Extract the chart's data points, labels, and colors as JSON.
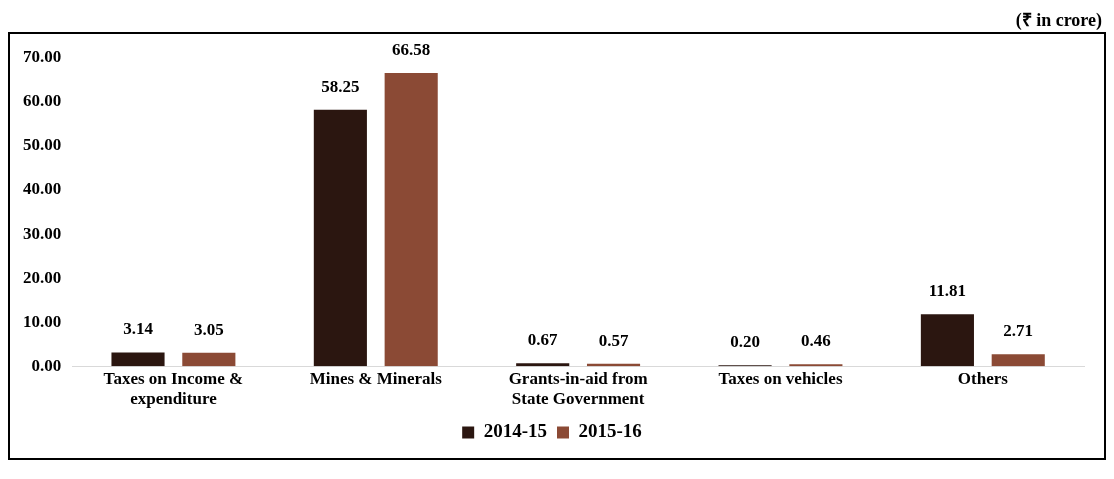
{
  "chart_data": {
    "type": "bar",
    "annotations": [
      "(₹ in crore)"
    ],
    "categories": [
      "Taxes on Income & expenditure",
      "Mines & Minerals",
      "Grants-in-aid from State Government",
      "Taxes on vehicles",
      "Others"
    ],
    "series": [
      {
        "name": "2014-15",
        "color": "#2b1610",
        "values": [
          3.14,
          58.25,
          0.67,
          0.2,
          11.81
        ],
        "value_labels": [
          "3.14",
          "58.25",
          "0.67",
          "0.20",
          "11.81"
        ]
      },
      {
        "name": "2015-16",
        "color": "#8b4a35",
        "values": [
          3.05,
          66.58,
          0.57,
          0.46,
          2.71
        ],
        "value_labels": [
          "3.05",
          "66.58",
          "0.57",
          "0.46",
          "2.71"
        ]
      }
    ],
    "ylim": [
      0,
      70
    ],
    "yticks": [
      {
        "value": 0,
        "label": "0.00"
      },
      {
        "value": 10,
        "label": "10.00"
      },
      {
        "value": 20,
        "label": "20.00"
      },
      {
        "value": 30,
        "label": "30.00"
      },
      {
        "value": 40,
        "label": "40.00"
      },
      {
        "value": 50,
        "label": "50.00"
      },
      {
        "value": 60,
        "label": "60.00"
      },
      {
        "value": 70,
        "label": "70.00"
      }
    ],
    "grid": false,
    "legend": "bottom"
  }
}
